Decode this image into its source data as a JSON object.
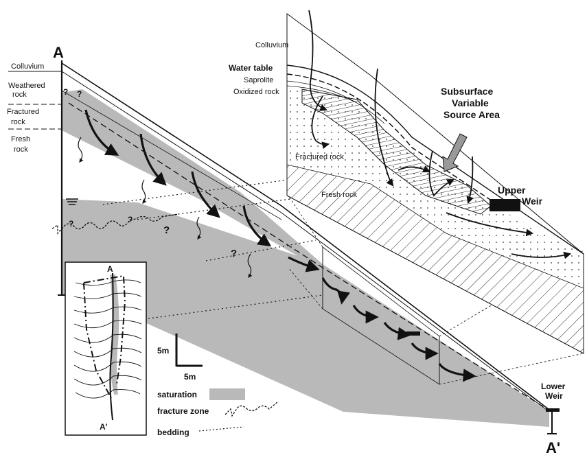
{
  "section_labels": {
    "start": "A",
    "end": "A'"
  },
  "left_profile": {
    "layers": [
      "Colluvium",
      "Weathered",
      "rock",
      "Fractured",
      "rock",
      "Fresh",
      "rock"
    ],
    "question_marks": [
      "?",
      "?",
      "?",
      "?",
      "?",
      "?"
    ]
  },
  "inset_map": {
    "top_label": "A",
    "bottom_label": "A'"
  },
  "scale_bar": {
    "vertical": "5m",
    "horizontal": "5m"
  },
  "legend": {
    "saturation": "saturation",
    "fracture_zone": "fracture zone",
    "bedding": "bedding"
  },
  "block_diagram": {
    "colluvium": "Colluvium",
    "water_table": "Water table",
    "saprolite": "Saprolite",
    "oxidized_rock": "Oxidized rock",
    "fractured_rock": "Fractured rock",
    "fresh_rock": "Fresh rock",
    "source_area_line1": "Subsurface",
    "source_area_line2": "Variable",
    "source_area_line3": "Source Area",
    "upper_weir_line1": "Upper",
    "upper_weir_line2": "Weir"
  },
  "lower_weir": {
    "line1": "Lower",
    "line2": "Weir"
  },
  "colors": {
    "saturation": "#b9b9b9",
    "ink": "#111111",
    "background": "#ffffff"
  }
}
